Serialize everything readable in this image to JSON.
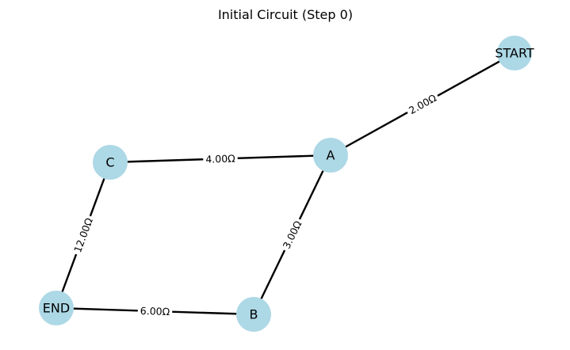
{
  "title": "Initial Circuit (Step 0)",
  "colors": {
    "node_fill": "#add8e6",
    "edge": "#000000",
    "background": "#ffffff"
  },
  "nodes": [
    {
      "id": "START",
      "label": "START"
    },
    {
      "id": "A",
      "label": "A"
    },
    {
      "id": "B",
      "label": "B"
    },
    {
      "id": "C",
      "label": "C"
    },
    {
      "id": "END",
      "label": "END"
    }
  ],
  "edges": [
    {
      "from": "START",
      "to": "A",
      "label": "2.00Ω"
    },
    {
      "from": "C",
      "to": "A",
      "label": "4.00Ω"
    },
    {
      "from": "A",
      "to": "B",
      "label": "3.00Ω"
    },
    {
      "from": "C",
      "to": "END",
      "label": "12.00Ω"
    },
    {
      "from": "END",
      "to": "B",
      "label": "6.00Ω"
    }
  ]
}
